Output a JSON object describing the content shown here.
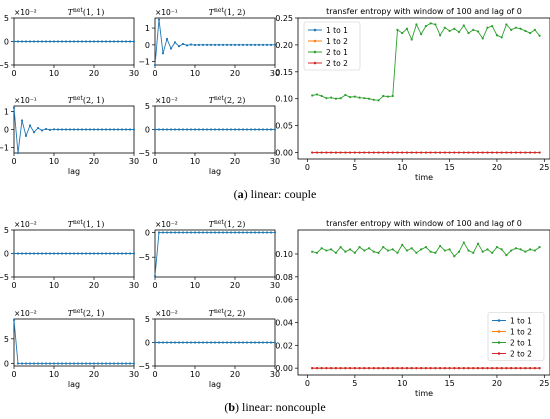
{
  "colors": {
    "s11": "#1f77b4",
    "s12": "#ff7f0e",
    "s21": "#2ca02c",
    "s22": "#d62728"
  },
  "captions": [
    {
      "tag": "a",
      "text": "linear: couple"
    },
    {
      "tag": "b",
      "text": "linear: noncouple"
    }
  ],
  "chart_data": [
    {
      "type": "line",
      "panel": "a",
      "title": "T^{net}(1, 1)",
      "exponent": "×10⁻²",
      "xlabel": "",
      "xlim": [
        0,
        30
      ],
      "xticks": [
        0,
        10,
        20,
        30
      ],
      "ylim": [
        -5,
        5
      ],
      "yticks": [
        -5,
        0,
        5
      ],
      "ytick_labels": [
        "−5",
        "0",
        "5"
      ],
      "series": [
        {
          "color_key": "s11",
          "x_range": [
            0,
            30
          ],
          "values_const": 0
        }
      ]
    },
    {
      "type": "line",
      "panel": "a",
      "title": "T^{net}(1, 2)",
      "exponent": "×10⁻¹",
      "xlabel": "",
      "xlim": [
        0,
        30
      ],
      "xticks": [
        0,
        10,
        20,
        30
      ],
      "ylim": [
        -1.2,
        1.6
      ],
      "yticks": [
        -1,
        0,
        1
      ],
      "ytick_labels": [
        "−1",
        "0",
        "1"
      ],
      "series": [
        {
          "color_key": "s11",
          "x": [
            0,
            1,
            2,
            3,
            4,
            5,
            6,
            7,
            8,
            9,
            10,
            11,
            12,
            13,
            14,
            15,
            16,
            17,
            18,
            19,
            20,
            21,
            22,
            23,
            24,
            25,
            26,
            27,
            28,
            29,
            30
          ],
          "values": [
            -1.2,
            1.5,
            -0.5,
            0.35,
            -0.22,
            0.15,
            -0.08,
            0.05,
            -0.03,
            0.02,
            -0.01,
            0,
            0,
            0,
            0,
            0,
            0,
            0,
            0,
            0,
            0,
            0,
            0,
            0,
            0,
            0,
            0,
            0,
            0,
            0,
            0
          ]
        }
      ]
    },
    {
      "type": "line",
      "panel": "a",
      "title": "T^{net}(2, 1)",
      "exponent": "×10⁻¹",
      "xlabel": "lag",
      "xlim": [
        0,
        30
      ],
      "xticks": [
        0,
        10,
        20,
        30
      ],
      "ylim": [
        -1.3,
        1.3
      ],
      "yticks": [
        -1,
        0,
        1
      ],
      "ytick_labels": [
        "−1",
        "0",
        "1"
      ],
      "series": [
        {
          "color_key": "s11",
          "x": [
            0,
            1,
            2,
            3,
            4,
            5,
            6,
            7,
            8,
            9,
            10,
            11,
            12,
            13,
            14,
            15,
            16,
            17,
            18,
            19,
            20,
            21,
            22,
            23,
            24,
            25,
            26,
            27,
            28,
            29,
            30
          ],
          "values": [
            1.2,
            -1.3,
            0.5,
            -0.35,
            0.22,
            -0.15,
            0.08,
            -0.05,
            0.03,
            -0.02,
            0.01,
            0,
            0,
            0,
            0,
            0,
            0,
            0,
            0,
            0,
            0,
            0,
            0,
            0,
            0,
            0,
            0,
            0,
            0,
            0,
            0
          ]
        }
      ]
    },
    {
      "type": "line",
      "panel": "a",
      "title": "T^{net}(2, 2)",
      "exponent": "×10⁻²",
      "xlabel": "lag",
      "xlim": [
        0,
        30
      ],
      "xticks": [
        0,
        10,
        20,
        30
      ],
      "ylim": [
        -5,
        5
      ],
      "yticks": [
        -5,
        0,
        5
      ],
      "ytick_labels": [
        "−5",
        "0",
        "5"
      ],
      "series": [
        {
          "color_key": "s11",
          "x_range": [
            0,
            30
          ],
          "values_const": 0
        }
      ]
    },
    {
      "type": "line",
      "panel": "a",
      "title": "transfer entropy with window of 100 and lag of 0",
      "xlabel": "time",
      "xlim": [
        -1,
        25.6
      ],
      "xticks": [
        0,
        5,
        10,
        15,
        20,
        25
      ],
      "ylim": [
        -0.012,
        0.25
      ],
      "yticks": [
        0,
        0.05,
        0.1,
        0.15,
        0.2,
        0.25
      ],
      "ytick_labels": [
        "0.00",
        "0.05",
        "0.10",
        "0.15",
        "0.20",
        "0.25"
      ],
      "legend": "top-left",
      "series": [
        {
          "name": "1 to 1",
          "color_key": "s11",
          "x_range": [
            0.5,
            24.5
          ],
          "values_const": 0
        },
        {
          "name": "1 to 2",
          "color_key": "s12",
          "x_range": [
            0.5,
            24.5
          ],
          "values_const": 0
        },
        {
          "name": "2 to 1",
          "color_key": "s21",
          "x": [
            0.5,
            1,
            1.5,
            2,
            2.5,
            3,
            3.5,
            4,
            4.5,
            5,
            5.5,
            6,
            6.5,
            7,
            7.5,
            8,
            8.5,
            9,
            9.5,
            10,
            10.5,
            11,
            11.5,
            12,
            12.5,
            13,
            13.5,
            14,
            14.5,
            15,
            15.5,
            16,
            16.5,
            17,
            17.5,
            18,
            18.5,
            19,
            19.5,
            20,
            20.5,
            21,
            21.5,
            22,
            22.5,
            23,
            23.5,
            24,
            24.5
          ],
          "values": [
            0.106,
            0.108,
            0.105,
            0.101,
            0.102,
            0.1,
            0.101,
            0.107,
            0.103,
            0.104,
            0.102,
            0.101,
            0.1,
            0.098,
            0.097,
            0.105,
            0.104,
            0.105,
            0.228,
            0.222,
            0.23,
            0.21,
            0.238,
            0.22,
            0.235,
            0.24,
            0.238,
            0.218,
            0.232,
            0.226,
            0.23,
            0.224,
            0.236,
            0.222,
            0.228,
            0.225,
            0.212,
            0.232,
            0.235,
            0.218,
            0.214,
            0.238,
            0.228,
            0.232,
            0.23,
            0.226,
            0.222,
            0.228,
            0.217
          ]
        },
        {
          "name": "2 to 2",
          "color_key": "s22",
          "x_range": [
            0.5,
            24.5
          ],
          "values_const": 0
        }
      ]
    },
    {
      "type": "line",
      "panel": "b",
      "title": "T^{net}(1, 1)",
      "exponent": "×10⁻²",
      "xlabel": "",
      "xlim": [
        0,
        30
      ],
      "xticks": [
        0,
        10,
        20,
        30
      ],
      "ylim": [
        -5,
        5
      ],
      "yticks": [
        -5,
        0,
        5
      ],
      "ytick_labels": [
        "−5",
        "0",
        "5"
      ],
      "series": [
        {
          "color_key": "s11",
          "x_range": [
            0,
            30
          ],
          "values_const": 0
        }
      ]
    },
    {
      "type": "line",
      "panel": "b",
      "title": "T^{net}(1, 2)",
      "exponent": "×10⁻²",
      "xlabel": "",
      "xlim": [
        0,
        30
      ],
      "xticks": [
        0,
        10,
        20,
        30
      ],
      "ylim": [
        -9,
        0.5
      ],
      "yticks": [
        -5,
        0
      ],
      "ytick_labels": [
        "−5",
        "0"
      ],
      "series": [
        {
          "color_key": "s11",
          "x": [
            0,
            1,
            2,
            3,
            4,
            5,
            6,
            7,
            8,
            9,
            10,
            11,
            12,
            13,
            14,
            15,
            16,
            17,
            18,
            19,
            20,
            21,
            22,
            23,
            24,
            25,
            26,
            27,
            28,
            29,
            30
          ],
          "values": [
            -8.8,
            0,
            0,
            0,
            0,
            0,
            0,
            0,
            0,
            0,
            0,
            0,
            0,
            0,
            0,
            0,
            0,
            0,
            0,
            0,
            0,
            0,
            0,
            0,
            0,
            0,
            0,
            0,
            0,
            0,
            0
          ]
        }
      ]
    },
    {
      "type": "line",
      "panel": "b",
      "title": "T^{net}(2, 1)",
      "exponent": "×10⁻²",
      "xlabel": "lag",
      "xlim": [
        0,
        30
      ],
      "xticks": [
        0,
        10,
        20,
        30
      ],
      "ylim": [
        -0.5,
        9
      ],
      "yticks": [
        0,
        5
      ],
      "ytick_labels": [
        "0",
        "5"
      ],
      "series": [
        {
          "color_key": "s11",
          "x": [
            0,
            1,
            2,
            3,
            4,
            5,
            6,
            7,
            8,
            9,
            10,
            11,
            12,
            13,
            14,
            15,
            16,
            17,
            18,
            19,
            20,
            21,
            22,
            23,
            24,
            25,
            26,
            27,
            28,
            29,
            30
          ],
          "values": [
            8.8,
            0,
            0,
            0,
            0,
            0,
            0,
            0,
            0,
            0,
            0,
            0,
            0,
            0,
            0,
            0,
            0,
            0,
            0,
            0,
            0,
            0,
            0,
            0,
            0,
            0,
            0,
            0,
            0,
            0,
            0
          ]
        }
      ]
    },
    {
      "type": "line",
      "panel": "b",
      "title": "T^{net}(2, 2)",
      "exponent": "×10⁻²",
      "xlabel": "lag",
      "xlim": [
        0,
        30
      ],
      "xticks": [
        0,
        10,
        20,
        30
      ],
      "ylim": [
        -5,
        5
      ],
      "yticks": [
        -5,
        0,
        5
      ],
      "ytick_labels": [
        "−5",
        "0",
        "5"
      ],
      "series": [
        {
          "color_key": "s11",
          "x_range": [
            0,
            30
          ],
          "values_const": 0
        }
      ]
    },
    {
      "type": "line",
      "panel": "b",
      "title": "transfer entropy with window of 100 and lag of 0",
      "xlabel": "time",
      "xlim": [
        -1,
        25.6
      ],
      "xticks": [
        0,
        5,
        10,
        15,
        20,
        25
      ],
      "ylim": [
        -0.006,
        0.121
      ],
      "yticks": [
        0,
        0.02,
        0.04,
        0.06,
        0.08,
        0.1
      ],
      "ytick_labels": [
        "0.00",
        "0.02",
        "0.04",
        "0.06",
        "0.08",
        "0.10"
      ],
      "legend": "center-right",
      "series": [
        {
          "name": "1 to 1",
          "color_key": "s11",
          "x_range": [
            0.5,
            24.5
          ],
          "values_const": 0
        },
        {
          "name": "1 to 2",
          "color_key": "s12",
          "x_range": [
            0.5,
            24.5
          ],
          "values_const": 0
        },
        {
          "name": "2 to 1",
          "color_key": "s21",
          "x": [
            0.5,
            1,
            1.5,
            2,
            2.5,
            3,
            3.5,
            4,
            4.5,
            5,
            5.5,
            6,
            6.5,
            7,
            7.5,
            8,
            8.5,
            9,
            9.5,
            10,
            10.5,
            11,
            11.5,
            12,
            12.5,
            13,
            13.5,
            14,
            14.5,
            15,
            15.5,
            16,
            16.5,
            17,
            17.5,
            18,
            18.5,
            19,
            19.5,
            20,
            20.5,
            21,
            21.5,
            22,
            22.5,
            23,
            23.5,
            24,
            24.5
          ],
          "values": [
            0.102,
            0.101,
            0.105,
            0.103,
            0.104,
            0.101,
            0.106,
            0.102,
            0.104,
            0.101,
            0.106,
            0.103,
            0.105,
            0.102,
            0.101,
            0.106,
            0.103,
            0.104,
            0.101,
            0.108,
            0.103,
            0.105,
            0.101,
            0.104,
            0.106,
            0.102,
            0.101,
            0.107,
            0.103,
            0.104,
            0.098,
            0.102,
            0.11,
            0.103,
            0.101,
            0.109,
            0.102,
            0.104,
            0.101,
            0.106,
            0.104,
            0.099,
            0.103,
            0.105,
            0.104,
            0.102,
            0.104,
            0.103,
            0.106
          ]
        },
        {
          "name": "2 to 2",
          "color_key": "s22",
          "x_range": [
            0.5,
            24.5
          ],
          "values_const": 0
        }
      ]
    }
  ]
}
